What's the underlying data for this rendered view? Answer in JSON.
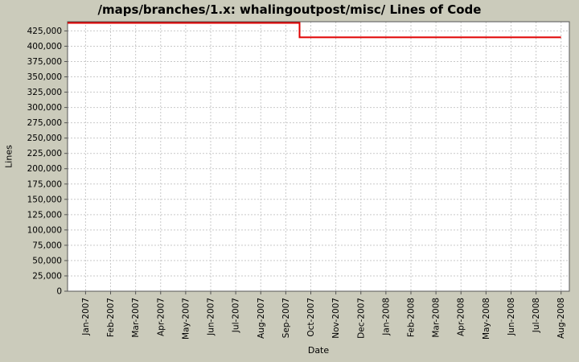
{
  "chart_data": {
    "type": "line",
    "step": true,
    "title": "/maps/branches/1.x: whalingoutpost/misc/ Lines of Code",
    "xlabel": "Date",
    "ylabel": "Lines",
    "x_tick_labels": [
      "Jan-2007",
      "Feb-2007",
      "Mar-2007",
      "Apr-2007",
      "May-2007",
      "Jun-2007",
      "Jul-2007",
      "Aug-2007",
      "Sep-2007",
      "Oct-2007",
      "Nov-2007",
      "Dec-2007",
      "Jan-2008",
      "Feb-2008",
      "Mar-2008",
      "Apr-2008",
      "May-2008",
      "Jun-2008",
      "Jul-2008",
      "Aug-2008"
    ],
    "y_ticks": [
      0,
      25000,
      50000,
      75000,
      100000,
      125000,
      150000,
      175000,
      200000,
      225000,
      250000,
      275000,
      300000,
      325000,
      350000,
      375000,
      400000,
      425000
    ],
    "y_tick_labels": [
      "0",
      "25,000",
      "50,000",
      "75,000",
      "100,000",
      "125,000",
      "150,000",
      "175,000",
      "200,000",
      "225,000",
      "250,000",
      "275,000",
      "300,000",
      "325,000",
      "350,000",
      "375,000",
      "400,000",
      "425,000"
    ],
    "ylim": [
      0,
      440000
    ],
    "xlim_months": [
      -0.72,
      19.33
    ],
    "grid": true,
    "legend": "none",
    "series": [
      {
        "name": "Lines of Code",
        "color": "#e00000",
        "description": "Flat at ~438,000 lines from Dec-2006 through mid-Sep-2007, then drops to ~414,500 lines and stays flat through Aug-2008",
        "points_month_value": [
          [
            -0.72,
            438000
          ],
          [
            8.55,
            438000
          ],
          [
            8.55,
            414500
          ],
          [
            19.0,
            414500
          ]
        ]
      }
    ],
    "colors": {
      "background": "#cbcbbb",
      "plot_background": "#ffffff",
      "gridline": "#c9c9c9",
      "border": "#545454",
      "tick": "#545454",
      "text": "#000000",
      "line": "#e00000"
    }
  }
}
